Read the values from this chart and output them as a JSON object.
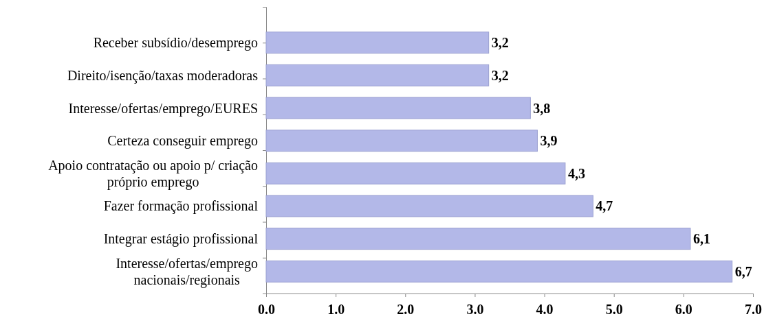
{
  "chart_data": {
    "type": "bar",
    "orientation": "horizontal",
    "categories": [
      "Receber subsídio/desemprego",
      "Direito/isenção/taxas moderadoras",
      "Interesse/ofertas/emprego/EURES",
      "Certeza conseguir emprego",
      "Apoio contratação ou apoio p/ criação próprio emprego",
      "Fazer formação profissional",
      "Integrar estágio profissional",
      "Interesse/ofertas/emprego nacionais/regionais"
    ],
    "values": [
      3.2,
      3.2,
      3.8,
      3.9,
      4.3,
      4.7,
      6.1,
      6.7
    ],
    "value_labels": [
      "3,2",
      "3,2",
      "3,8",
      "3,9",
      "4,3",
      "4,7",
      "6,1",
      "6,7"
    ],
    "color": "#b3b8e8",
    "xlim": [
      0,
      7
    ],
    "xticks": [
      {
        "value": 0,
        "label": "0.0"
      },
      {
        "value": 1,
        "label": "1.0"
      },
      {
        "value": 2,
        "label": "2.0"
      },
      {
        "value": 3,
        "label": "3.0"
      },
      {
        "value": 4,
        "label": "4.0"
      },
      {
        "value": 5,
        "label": "5.0"
      },
      {
        "value": 6,
        "label": "6.0"
      },
      {
        "value": 7,
        "label": "7.0"
      }
    ],
    "grid": false
  }
}
